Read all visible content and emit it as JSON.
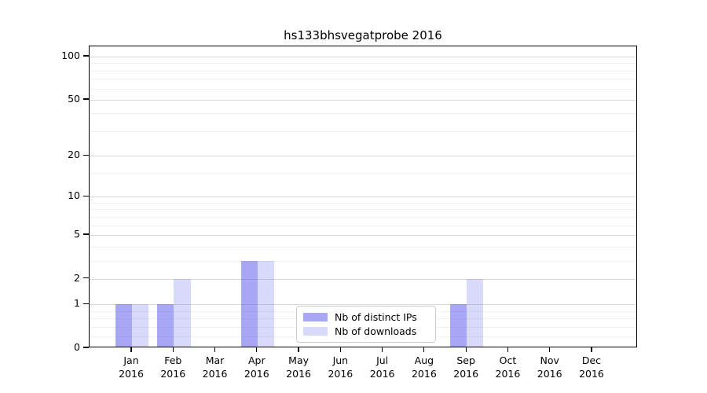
{
  "chart_data": {
    "type": "bar",
    "title": "hs133bhsvegatprobe 2016",
    "categories": [
      "Jan",
      "Feb",
      "Mar",
      "Apr",
      "May",
      "Jun",
      "Jul",
      "Aug",
      "Sep",
      "Oct",
      "Nov",
      "Dec"
    ],
    "year": "2016",
    "series": [
      {
        "name": "Nb of distinct IPs",
        "color": "#4f4fe980",
        "values": [
          1,
          1,
          0,
          3,
          0,
          0,
          0,
          0,
          1,
          0,
          0,
          0
        ]
      },
      {
        "name": "Nb of downloads",
        "color": "#6767e740",
        "values": [
          1,
          2,
          0,
          3,
          0,
          0,
          0,
          0,
          2,
          0,
          0,
          0
        ]
      }
    ],
    "yscale": "log1p",
    "ylim": [
      0,
      100
    ],
    "yticks": [
      0,
      1,
      2,
      5,
      10,
      20,
      50,
      100
    ],
    "yticks_minor": [
      0.2,
      0.4,
      0.6,
      0.8,
      3,
      4,
      6,
      7,
      8,
      9,
      15,
      30,
      40,
      60,
      70,
      80,
      90
    ],
    "grid": "on",
    "legend_position": "lower center"
  },
  "colors": {
    "bar_distinct_ips": "#a8a8f5",
    "bar_downloads": "#d9d9f9",
    "grid_major": "#d9d9d9",
    "grid_minor": "#f0f0f0",
    "spine": "#000000"
  }
}
